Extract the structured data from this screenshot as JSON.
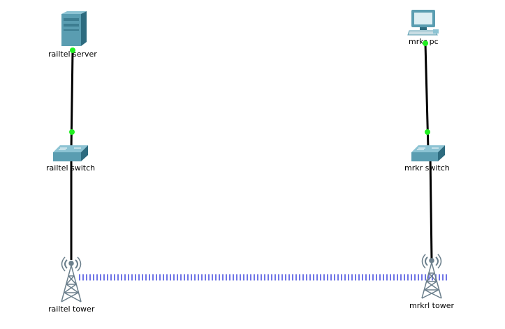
{
  "nodes": {
    "railtel_server": {
      "label": "railtel server",
      "icon": "server-icon"
    },
    "mrkr_pc": {
      "label": "mrkr pc",
      "icon": "pc-icon"
    },
    "railtel_switch": {
      "label": "railtel switch",
      "icon": "switch-icon"
    },
    "mrkr_switch": {
      "label": "mrkr switch",
      "icon": "switch-icon"
    },
    "railtel_tower": {
      "label": "railtel tower",
      "icon": "tower-icon"
    },
    "mrkrl_tower": {
      "label": "mrkrl tower",
      "icon": "tower-icon"
    }
  },
  "links": [
    {
      "from": "railtel server",
      "to": "railtel switch",
      "type": "wired",
      "status": "up"
    },
    {
      "from": "railtel switch",
      "to": "railtel tower",
      "type": "wired",
      "status": "none"
    },
    {
      "from": "mrkr pc",
      "to": "mrkr switch",
      "type": "wired",
      "status": "up"
    },
    {
      "from": "mrkr switch",
      "to": "mrkrl tower",
      "type": "wired",
      "status": "none"
    },
    {
      "from": "railtel tower",
      "to": "mrkrl tower",
      "type": "wireless"
    }
  ],
  "colors": {
    "background": "#ffffff",
    "wire": "#000000",
    "link_up": "#22ee22",
    "wireless": "#6f74e6",
    "device_primary": "#5a9db1",
    "device_dark": "#2d6b7f",
    "tower": "#6b7f8c"
  }
}
